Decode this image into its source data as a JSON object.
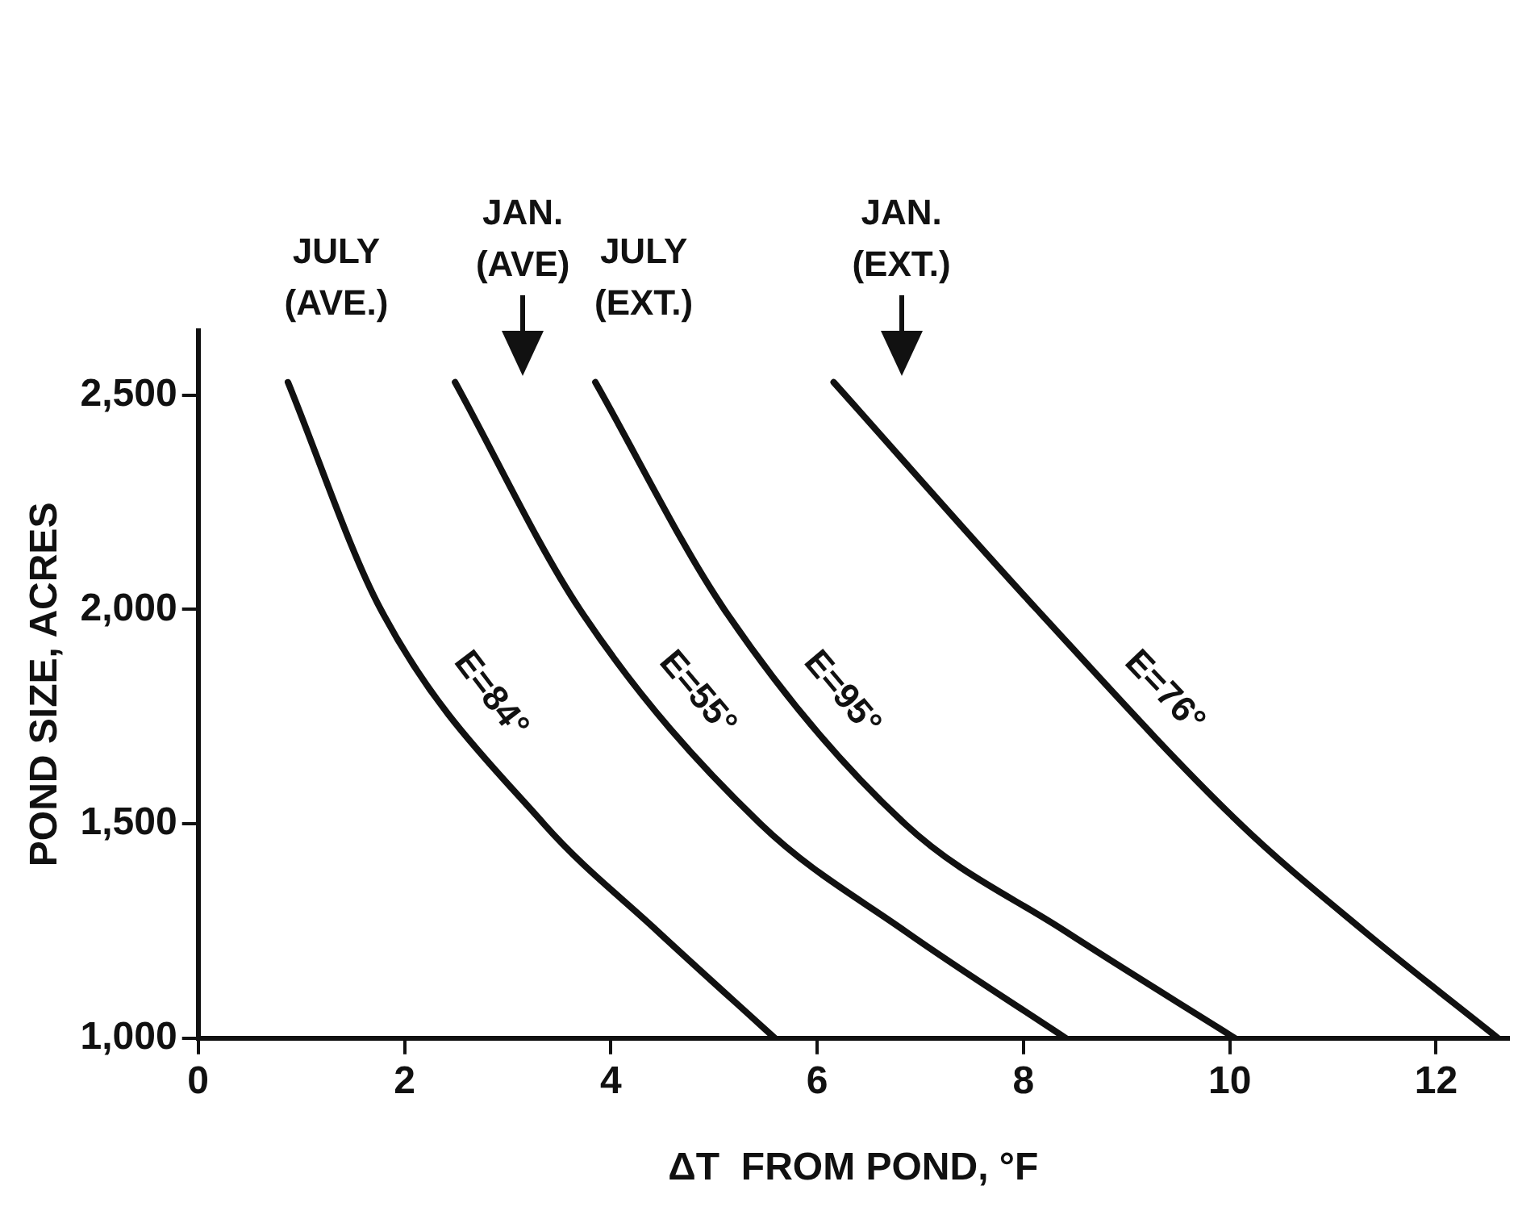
{
  "chart_data": {
    "type": "line",
    "xlabel": "ΔT  FROM POND, °F",
    "ylabel": "POND SIZE, ACRES",
    "xlim": [
      0,
      12.7
    ],
    "ylim": [
      1000,
      2650
    ],
    "xticks": [
      0,
      2,
      4,
      6,
      8,
      10,
      12
    ],
    "yticks": [
      {
        "value": 1000,
        "label": "1,000"
      },
      {
        "value": 1500,
        "label": "1,500"
      },
      {
        "value": 2000,
        "label": "2,000"
      },
      {
        "value": 2500,
        "label": "2,500"
      }
    ],
    "grid": false,
    "legend": "top",
    "marker": "none",
    "line_style": "solid",
    "series": [
      {
        "name": "JULY (AVE.)",
        "color": "#111111",
        "x": [
          0.87,
          1.77,
          3.35,
          4.45,
          5.59
        ],
        "values": [
          2530,
          2000,
          1500,
          1250,
          1000
        ]
      },
      {
        "name": "JAN. (AVE)",
        "color": "#111111",
        "x": [
          2.49,
          3.7,
          5.45,
          6.85,
          8.41
        ],
        "values": [
          2530,
          2000,
          1500,
          1250,
          1000
        ]
      },
      {
        "name": "JULY (EXT.)",
        "color": "#111111",
        "x": [
          3.85,
          5.1,
          6.85,
          8.4,
          10.05
        ],
        "values": [
          2530,
          2000,
          1500,
          1250,
          1000
        ]
      },
      {
        "name": "JAN. (EXT.)",
        "color": "#111111",
        "x": [
          6.16,
          8.13,
          10.1,
          11.3,
          12.6
        ],
        "values": [
          2530,
          2000,
          1500,
          1250,
          1000
        ]
      }
    ],
    "annotations": [
      "E=84°",
      "E=55°",
      "E=95°",
      "E=76°"
    ]
  }
}
